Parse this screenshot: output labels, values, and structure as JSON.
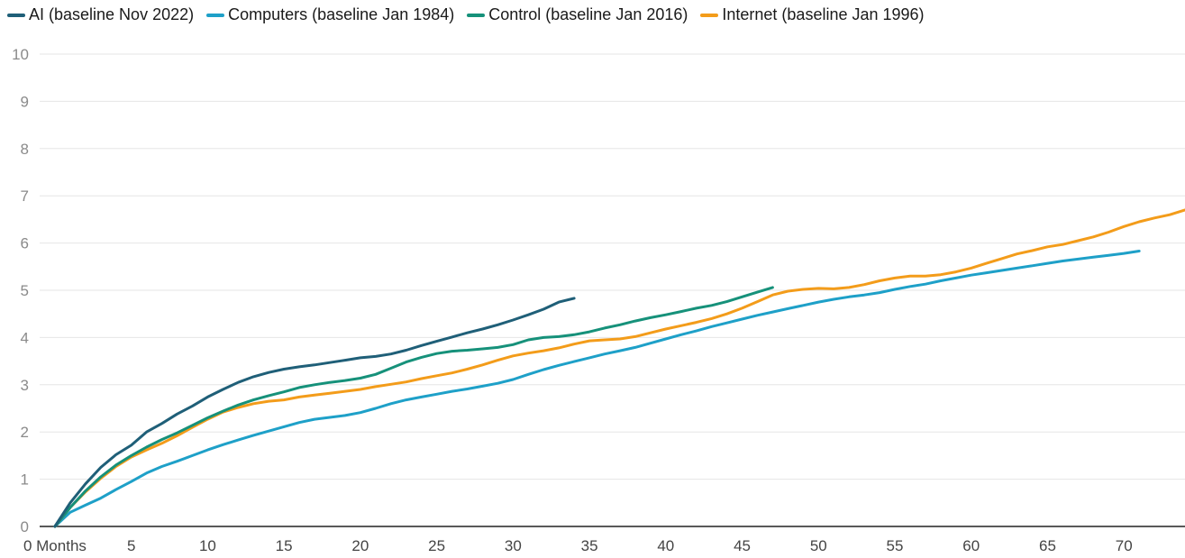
{
  "chart_data": {
    "type": "line",
    "title": "",
    "xlabel": "",
    "ylabel": "",
    "xlim": [
      -1,
      74
    ],
    "ylim": [
      0,
      10
    ],
    "x_ticks": [
      0,
      5,
      10,
      15,
      20,
      25,
      30,
      35,
      40,
      45,
      50,
      55,
      60,
      65,
      70
    ],
    "x_tick_labels": [
      "0 Months",
      "5",
      "10",
      "15",
      "20",
      "25",
      "30",
      "35",
      "40",
      "45",
      "50",
      "55",
      "60",
      "65",
      "70"
    ],
    "y_ticks": [
      0,
      1,
      2,
      3,
      4,
      5,
      6,
      7,
      8,
      9,
      10
    ],
    "y_tick_labels": [
      "0",
      "1",
      "2",
      "3",
      "4",
      "5",
      "6",
      "7",
      "8",
      "9",
      "10"
    ],
    "grid": true,
    "legend_position": "top-left",
    "series": [
      {
        "name": "AI (baseline Nov 2022)",
        "color": "#1f5f78",
        "x": [
          0,
          1,
          2,
          3,
          4,
          5,
          6,
          7,
          8,
          9,
          10,
          11,
          12,
          13,
          14,
          15,
          16,
          17,
          18,
          19,
          20,
          21,
          22,
          23,
          24,
          25,
          26,
          27,
          28,
          29,
          30,
          31,
          32,
          33,
          34
        ],
        "y": [
          0,
          0.5,
          0.9,
          1.25,
          1.52,
          1.72,
          2.0,
          2.18,
          2.38,
          2.55,
          2.74,
          2.9,
          3.05,
          3.17,
          3.26,
          3.33,
          3.38,
          3.42,
          3.47,
          3.52,
          3.57,
          3.6,
          3.65,
          3.73,
          3.83,
          3.92,
          4.01,
          4.1,
          4.18,
          4.27,
          4.37,
          4.48,
          4.6,
          4.75,
          4.83
        ]
      },
      {
        "name": "Computers (baseline Jan 1984)",
        "color": "#1ea0c8",
        "x": [
          0,
          1,
          2,
          3,
          4,
          5,
          6,
          7,
          8,
          9,
          10,
          11,
          12,
          13,
          14,
          15,
          16,
          17,
          18,
          19,
          20,
          21,
          22,
          23,
          24,
          25,
          26,
          27,
          28,
          29,
          30,
          31,
          32,
          33,
          34,
          35,
          36,
          37,
          38,
          39,
          40,
          41,
          42,
          43,
          44,
          45,
          46,
          47,
          48,
          49,
          50,
          51,
          52,
          53,
          54,
          55,
          56,
          57,
          58,
          59,
          60,
          61,
          62,
          63,
          64,
          65,
          66,
          67,
          68,
          69,
          70,
          71
        ],
        "y": [
          0,
          0.3,
          0.45,
          0.6,
          0.78,
          0.95,
          1.13,
          1.27,
          1.38,
          1.5,
          1.62,
          1.73,
          1.83,
          1.93,
          2.02,
          2.11,
          2.2,
          2.27,
          2.31,
          2.35,
          2.41,
          2.5,
          2.6,
          2.68,
          2.74,
          2.8,
          2.86,
          2.91,
          2.97,
          3.03,
          3.11,
          3.22,
          3.32,
          3.41,
          3.49,
          3.57,
          3.65,
          3.72,
          3.79,
          3.88,
          3.97,
          4.06,
          4.14,
          4.23,
          4.31,
          4.39,
          4.47,
          4.54,
          4.61,
          4.68,
          4.75,
          4.81,
          4.86,
          4.9,
          4.95,
          5.02,
          5.08,
          5.13,
          5.2,
          5.26,
          5.32,
          5.37,
          5.42,
          5.47,
          5.52,
          5.57,
          5.62,
          5.66,
          5.7,
          5.74,
          5.78,
          5.83
        ]
      },
      {
        "name": "Control (baseline Jan 2016)",
        "color": "#16917a",
        "x": [
          0,
          1,
          2,
          3,
          4,
          5,
          6,
          7,
          8,
          9,
          10,
          11,
          12,
          13,
          14,
          15,
          16,
          17,
          18,
          19,
          20,
          21,
          22,
          23,
          24,
          25,
          26,
          27,
          28,
          29,
          30,
          31,
          32,
          33,
          34,
          35,
          36,
          37,
          38,
          39,
          40,
          41,
          42,
          43,
          44,
          45,
          46,
          47
        ],
        "y": [
          0,
          0.4,
          0.75,
          1.05,
          1.3,
          1.5,
          1.68,
          1.84,
          1.98,
          2.14,
          2.3,
          2.44,
          2.57,
          2.68,
          2.77,
          2.85,
          2.94,
          3.0,
          3.05,
          3.09,
          3.14,
          3.22,
          3.35,
          3.48,
          3.58,
          3.66,
          3.71,
          3.73,
          3.76,
          3.79,
          3.85,
          3.95,
          4.0,
          4.02,
          4.06,
          4.12,
          4.2,
          4.27,
          4.35,
          4.42,
          4.48,
          4.55,
          4.62,
          4.68,
          4.76,
          4.86,
          4.96,
          5.06
        ]
      },
      {
        "name": "Internet (baseline Jan 1996)",
        "color": "#f39c1a",
        "x": [
          0,
          1,
          2,
          3,
          4,
          5,
          6,
          7,
          8,
          9,
          10,
          11,
          12,
          13,
          14,
          15,
          16,
          17,
          18,
          19,
          20,
          21,
          22,
          23,
          24,
          25,
          26,
          27,
          28,
          29,
          30,
          31,
          32,
          33,
          34,
          35,
          36,
          37,
          38,
          39,
          40,
          41,
          42,
          43,
          44,
          45,
          46,
          47,
          48,
          49,
          50,
          51,
          52,
          53,
          54,
          55,
          56,
          57,
          58,
          59,
          60,
          61,
          62,
          63,
          64,
          65,
          66,
          67,
          68,
          69,
          70,
          71,
          72,
          73,
          74
        ],
        "y": [
          0,
          0.4,
          0.73,
          1.02,
          1.27,
          1.47,
          1.62,
          1.76,
          1.92,
          2.1,
          2.27,
          2.42,
          2.52,
          2.6,
          2.65,
          2.68,
          2.74,
          2.78,
          2.82,
          2.86,
          2.9,
          2.96,
          3.01,
          3.06,
          3.13,
          3.19,
          3.25,
          3.33,
          3.42,
          3.52,
          3.61,
          3.67,
          3.72,
          3.78,
          3.86,
          3.93,
          3.95,
          3.97,
          4.02,
          4.1,
          4.18,
          4.25,
          4.32,
          4.4,
          4.5,
          4.62,
          4.76,
          4.9,
          4.98,
          5.02,
          5.04,
          5.03,
          5.06,
          5.12,
          5.2,
          5.26,
          5.3,
          5.3,
          5.33,
          5.39,
          5.47,
          5.57,
          5.67,
          5.77,
          5.84,
          5.92,
          5.97,
          6.05,
          6.13,
          6.23,
          6.35,
          6.45,
          6.53,
          6.6,
          6.7
        ]
      }
    ]
  }
}
